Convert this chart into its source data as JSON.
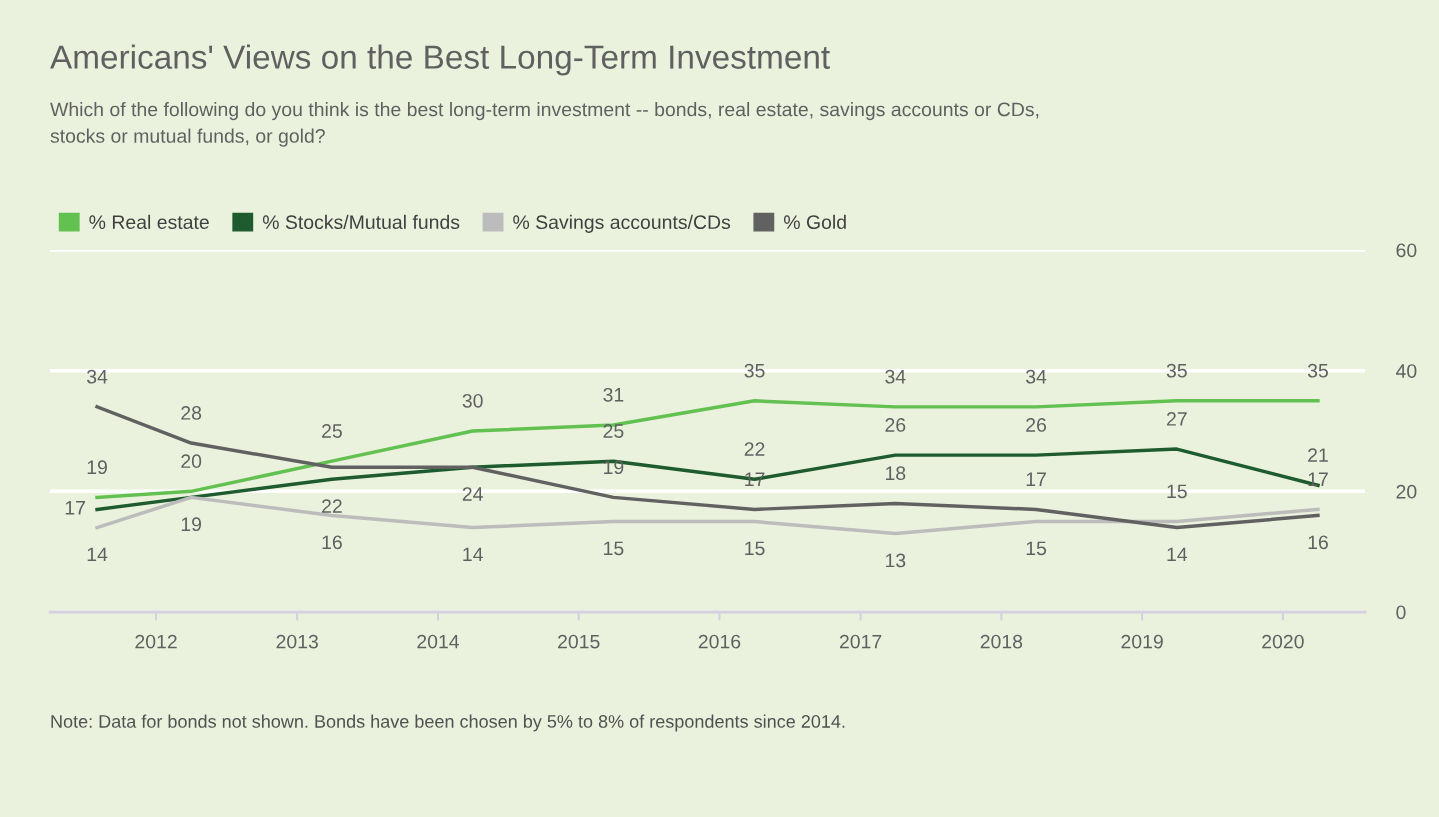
{
  "chart_data": {
    "type": "line",
    "title": "Americans' Views on the Best Long-Term Investment",
    "subtitle": "Which of the following do you think is the best long-term investment -- bonds, real estate, savings accounts or CDs, stocks or mutual funds, or gold?",
    "x": [
      "2011-08",
      "2012-04",
      "2013-04",
      "2014-04",
      "2015-04",
      "2016-04",
      "2017-04",
      "2018-04",
      "2019-04",
      "2020-04"
    ],
    "series": [
      {
        "name": "% Real estate",
        "color": "#62c150",
        "values": [
          19,
          20,
          25,
          30,
          31,
          35,
          34,
          34,
          35,
          35
        ]
      },
      {
        "name": "% Stocks/Mutual funds",
        "color": "#1e5b2e",
        "values": [
          17,
          19,
          22,
          24,
          25,
          22,
          26,
          26,
          27,
          21
        ],
        "value_labels": [
          "17",
          null,
          "22",
          "24",
          "25",
          "22",
          "26",
          "26",
          "27",
          "21"
        ]
      },
      {
        "name": "% Savings accounts/CDs",
        "color": "#bcbcbc",
        "values": [
          14,
          19,
          16,
          14,
          15,
          15,
          13,
          15,
          15,
          17
        ]
      },
      {
        "name": "% Gold",
        "color": "#616161",
        "values": [
          34,
          28,
          24,
          24,
          19,
          17,
          18,
          17,
          14,
          16
        ],
        "value_labels": [
          "34",
          "28",
          null,
          null,
          "19",
          "17",
          "18",
          "17",
          "14",
          "16"
        ]
      }
    ],
    "xlim": [
      "2011-04",
      "2020-08"
    ],
    "xticks": [
      "2012",
      "2013",
      "2014",
      "2015",
      "2016",
      "2017",
      "2018",
      "2019",
      "2020"
    ],
    "ylim": [
      0,
      60
    ],
    "yticks": [
      0,
      20,
      40,
      60
    ],
    "grid": "y",
    "legend": "top left",
    "marker": "none",
    "line_style": "solid",
    "data_labels": true,
    "annotations": [
      "Note: Data for bonds not shown. Bonds have been chosen by 5% to 8% of respondents since 2014."
    ]
  }
}
